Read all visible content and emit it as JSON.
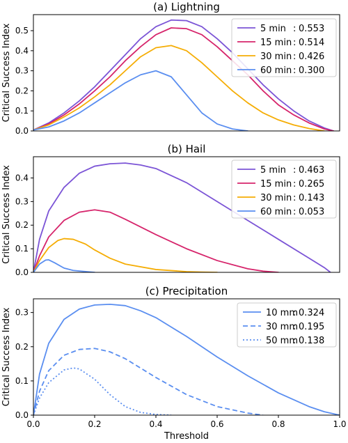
{
  "figure": {
    "xlabel": "Threshold"
  },
  "chart_data": [
    {
      "type": "line",
      "title": "(a) Lightning",
      "xlabel": "",
      "ylabel": "Critical Success Index",
      "xlim": [
        0,
        1
      ],
      "ylim": [
        0,
        0.58
      ],
      "yticks": [
        "0.0",
        "0.1",
        "0.2",
        "0.3",
        "0.4",
        "0.5"
      ],
      "ytick_values": [
        0,
        0.1,
        0.2,
        0.3,
        0.4,
        0.5
      ],
      "show_xticks": false,
      "legend_position": "top-right",
      "series": [
        {
          "name": "5 min",
          "value_label": "0.553",
          "color": "#7b54d6",
          "dash": "solid",
          "x": [
            0,
            0.05,
            0.1,
            0.15,
            0.2,
            0.25,
            0.3,
            0.35,
            0.4,
            0.45,
            0.5,
            0.55,
            0.6,
            0.65,
            0.7,
            0.75,
            0.8,
            0.85,
            0.9,
            0.95,
            0.98
          ],
          "y": [
            0.005,
            0.04,
            0.09,
            0.15,
            0.22,
            0.3,
            0.38,
            0.46,
            0.52,
            0.553,
            0.55,
            0.52,
            0.46,
            0.39,
            0.31,
            0.23,
            0.16,
            0.1,
            0.05,
            0.015,
            0.0
          ]
        },
        {
          "name": "15 min",
          "value_label": "0.514",
          "color": "#d6246b",
          "dash": "solid",
          "x": [
            0,
            0.05,
            0.1,
            0.15,
            0.2,
            0.25,
            0.3,
            0.35,
            0.4,
            0.45,
            0.5,
            0.55,
            0.6,
            0.65,
            0.7,
            0.75,
            0.8,
            0.85,
            0.9,
            0.95,
            0.98
          ],
          "y": [
            0.005,
            0.035,
            0.08,
            0.135,
            0.2,
            0.27,
            0.35,
            0.42,
            0.48,
            0.514,
            0.51,
            0.48,
            0.42,
            0.35,
            0.28,
            0.2,
            0.13,
            0.08,
            0.04,
            0.01,
            0.0
          ]
        },
        {
          "name": "30 min",
          "value_label": "0.426",
          "color": "#f5ad05",
          "dash": "solid",
          "x": [
            0,
            0.05,
            0.1,
            0.15,
            0.2,
            0.25,
            0.3,
            0.35,
            0.4,
            0.45,
            0.5,
            0.55,
            0.6,
            0.65,
            0.7,
            0.75,
            0.8,
            0.85,
            0.9,
            0.95
          ],
          "y": [
            0.005,
            0.03,
            0.07,
            0.115,
            0.17,
            0.23,
            0.3,
            0.37,
            0.415,
            0.426,
            0.4,
            0.34,
            0.27,
            0.2,
            0.14,
            0.09,
            0.055,
            0.03,
            0.012,
            0.0
          ]
        },
        {
          "name": "60 min",
          "value_label": "0.300",
          "color": "#5a8ef0",
          "dash": "solid",
          "x": [
            0,
            0.05,
            0.1,
            0.15,
            0.2,
            0.25,
            0.3,
            0.35,
            0.4,
            0.45,
            0.5,
            0.55,
            0.6,
            0.65,
            0.7
          ],
          "y": [
            0.005,
            0.02,
            0.05,
            0.09,
            0.14,
            0.19,
            0.24,
            0.28,
            0.3,
            0.27,
            0.18,
            0.09,
            0.035,
            0.01,
            0.0
          ]
        }
      ]
    },
    {
      "type": "line",
      "title": "(b) Hail",
      "xlabel": "",
      "ylabel": "Critical Success Index",
      "xlim": [
        0,
        1
      ],
      "ylim": [
        0,
        0.49
      ],
      "yticks": [
        "0.0",
        "0.1",
        "0.2",
        "0.3",
        "0.4"
      ],
      "ytick_values": [
        0,
        0.1,
        0.2,
        0.3,
        0.4
      ],
      "show_xticks": false,
      "legend_position": "top-right",
      "series": [
        {
          "name": "5 min",
          "value_label": "0.463",
          "color": "#7b54d6",
          "dash": "solid",
          "x": [
            0,
            0.02,
            0.05,
            0.1,
            0.15,
            0.2,
            0.25,
            0.3,
            0.35,
            0.4,
            0.5,
            0.6,
            0.7,
            0.8,
            0.9,
            0.95,
            0.97
          ],
          "y": [
            0,
            0.14,
            0.26,
            0.36,
            0.42,
            0.45,
            0.46,
            0.463,
            0.455,
            0.44,
            0.38,
            0.3,
            0.22,
            0.14,
            0.06,
            0.02,
            0.0
          ]
        },
        {
          "name": "15 min",
          "value_label": "0.265",
          "color": "#d6246b",
          "dash": "solid",
          "x": [
            0,
            0.02,
            0.05,
            0.1,
            0.15,
            0.2,
            0.25,
            0.3,
            0.4,
            0.5,
            0.6,
            0.7,
            0.75,
            0.8
          ],
          "y": [
            0,
            0.07,
            0.15,
            0.22,
            0.255,
            0.265,
            0.255,
            0.225,
            0.16,
            0.1,
            0.05,
            0.015,
            0.005,
            0.0
          ]
        },
        {
          "name": "30 min",
          "value_label": "0.143",
          "color": "#f5ad05",
          "dash": "solid",
          "x": [
            0,
            0.02,
            0.05,
            0.08,
            0.1,
            0.13,
            0.17,
            0.2,
            0.25,
            0.3,
            0.4,
            0.5,
            0.55,
            0.6
          ],
          "y": [
            0,
            0.05,
            0.105,
            0.135,
            0.143,
            0.14,
            0.12,
            0.095,
            0.06,
            0.035,
            0.012,
            0.003,
            0.001,
            0.0
          ]
        },
        {
          "name": "60 min",
          "value_label": "0.053",
          "color": "#5a8ef0",
          "dash": "solid",
          "x": [
            0,
            0.02,
            0.04,
            0.05,
            0.07,
            0.1,
            0.13,
            0.18,
            0.2
          ],
          "y": [
            0,
            0.035,
            0.052,
            0.053,
            0.04,
            0.018,
            0.008,
            0.002,
            0.0
          ]
        }
      ]
    },
    {
      "type": "line",
      "title": "(c) Precipitation",
      "xlabel": "Threshold",
      "ylabel": "Critical Success Index",
      "xlim": [
        0,
        1
      ],
      "ylim": [
        0,
        0.34
      ],
      "yticks": [
        "0.0",
        "0.1",
        "0.2",
        "0.3"
      ],
      "ytick_values": [
        0,
        0.1,
        0.2,
        0.3
      ],
      "xticks": [
        "0.0",
        "0.2",
        "0.4",
        "0.6",
        "0.8",
        "1.0"
      ],
      "xtick_values": [
        0,
        0.2,
        0.4,
        0.6,
        0.8,
        1.0
      ],
      "show_xticks": true,
      "legend_position": "top-right",
      "series": [
        {
          "name": "10 mm",
          "value_label": "0.324",
          "color": "#5a8ef0",
          "dash": "solid",
          "x": [
            0,
            0.02,
            0.05,
            0.1,
            0.15,
            0.2,
            0.25,
            0.3,
            0.35,
            0.4,
            0.5,
            0.6,
            0.7,
            0.8,
            0.9,
            0.95,
            1.0
          ],
          "y": [
            0,
            0.12,
            0.21,
            0.28,
            0.31,
            0.322,
            0.324,
            0.32,
            0.305,
            0.285,
            0.23,
            0.17,
            0.115,
            0.065,
            0.025,
            0.01,
            0.0
          ]
        },
        {
          "name": "30 mm",
          "value_label": "0.195",
          "color": "#5a8ef0",
          "dash": "dashed",
          "x": [
            0,
            0.02,
            0.05,
            0.1,
            0.15,
            0.2,
            0.25,
            0.3,
            0.4,
            0.5,
            0.6,
            0.7,
            0.75
          ],
          "y": [
            0,
            0.07,
            0.13,
            0.175,
            0.192,
            0.195,
            0.185,
            0.165,
            0.11,
            0.06,
            0.025,
            0.006,
            0.0
          ]
        },
        {
          "name": "50 mm",
          "value_label": "0.138",
          "color": "#5a8ef0",
          "dash": "dotted",
          "x": [
            0,
            0.02,
            0.05,
            0.1,
            0.13,
            0.15,
            0.2,
            0.25,
            0.3,
            0.35,
            0.4,
            0.45
          ],
          "y": [
            0,
            0.05,
            0.095,
            0.132,
            0.138,
            0.135,
            0.105,
            0.06,
            0.025,
            0.008,
            0.002,
            0.0
          ]
        }
      ]
    }
  ]
}
